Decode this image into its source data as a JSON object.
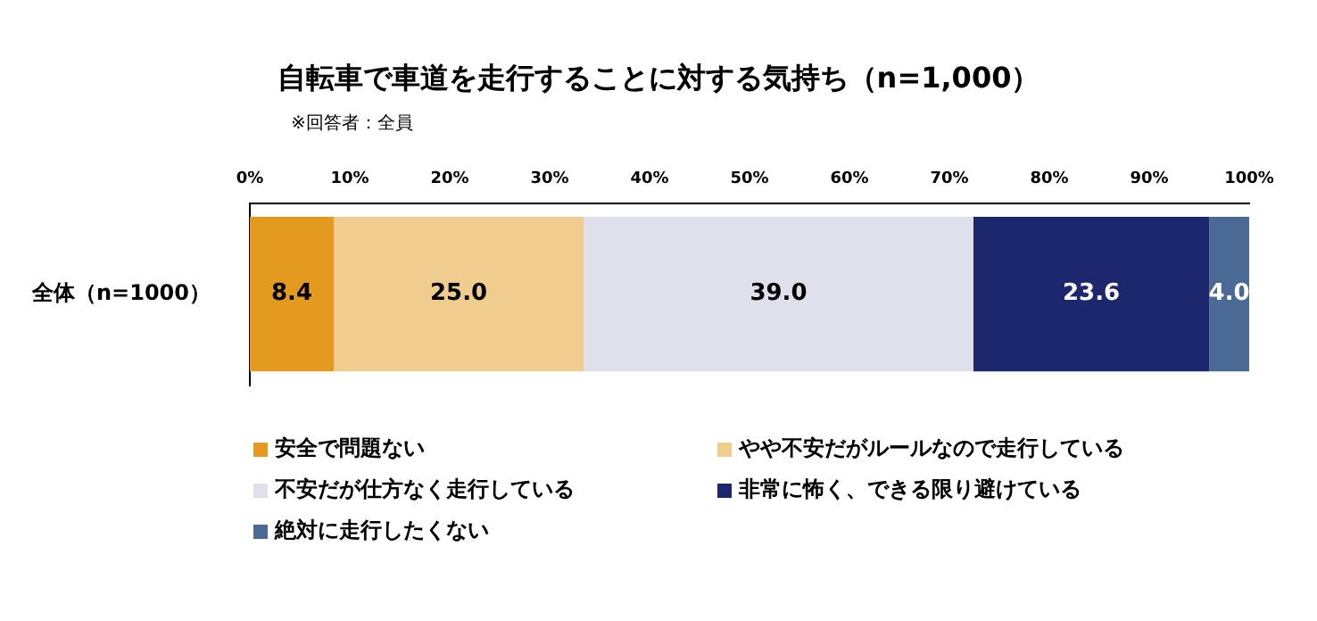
{
  "chart_data": {
    "type": "bar",
    "orientation": "horizontal",
    "stacked": true,
    "title": "自転車で車道を走行することに対する気持ち（n=1,000）",
    "subtitle": "※回答者：全員",
    "categories": [
      "全体（n=1000）"
    ],
    "series": [
      {
        "name": "安全で問題ない",
        "color": "#e39a1f",
        "values": [
          8.4
        ],
        "value_labels": [
          "8.4"
        ]
      },
      {
        "name": "やや不安だがルールなので走行している",
        "color": "#f0cc8e",
        "values": [
          25.0
        ],
        "value_labels": [
          "25.0"
        ]
      },
      {
        "name": "不安だが仕方なく走行している",
        "color": "#dfe0ec",
        "values": [
          39.0
        ],
        "value_labels": [
          "39.0"
        ]
      },
      {
        "name": "非常に怖く、できる限り避けている",
        "color": "#1c276e",
        "values": [
          23.6
        ],
        "value_labels": [
          "23.6"
        ]
      },
      {
        "name": "絶対に走行したくない",
        "color": "#4a6a95",
        "values": [
          4.0
        ],
        "value_labels": [
          "4.0"
        ]
      }
    ],
    "xlim": [
      0,
      100
    ],
    "xticks": [
      {
        "value": 0,
        "label": "0%"
      },
      {
        "value": 10,
        "label": "10%"
      },
      {
        "value": 20,
        "label": "20%"
      },
      {
        "value": 30,
        "label": "30%"
      },
      {
        "value": 40,
        "label": "40%"
      },
      {
        "value": 50,
        "label": "50%"
      },
      {
        "value": 60,
        "label": "60%"
      },
      {
        "value": 70,
        "label": "70%"
      },
      {
        "value": 80,
        "label": "80%"
      },
      {
        "value": 90,
        "label": "90%"
      },
      {
        "value": 100,
        "label": "100%"
      }
    ],
    "grid": false,
    "legend": "bottom"
  }
}
